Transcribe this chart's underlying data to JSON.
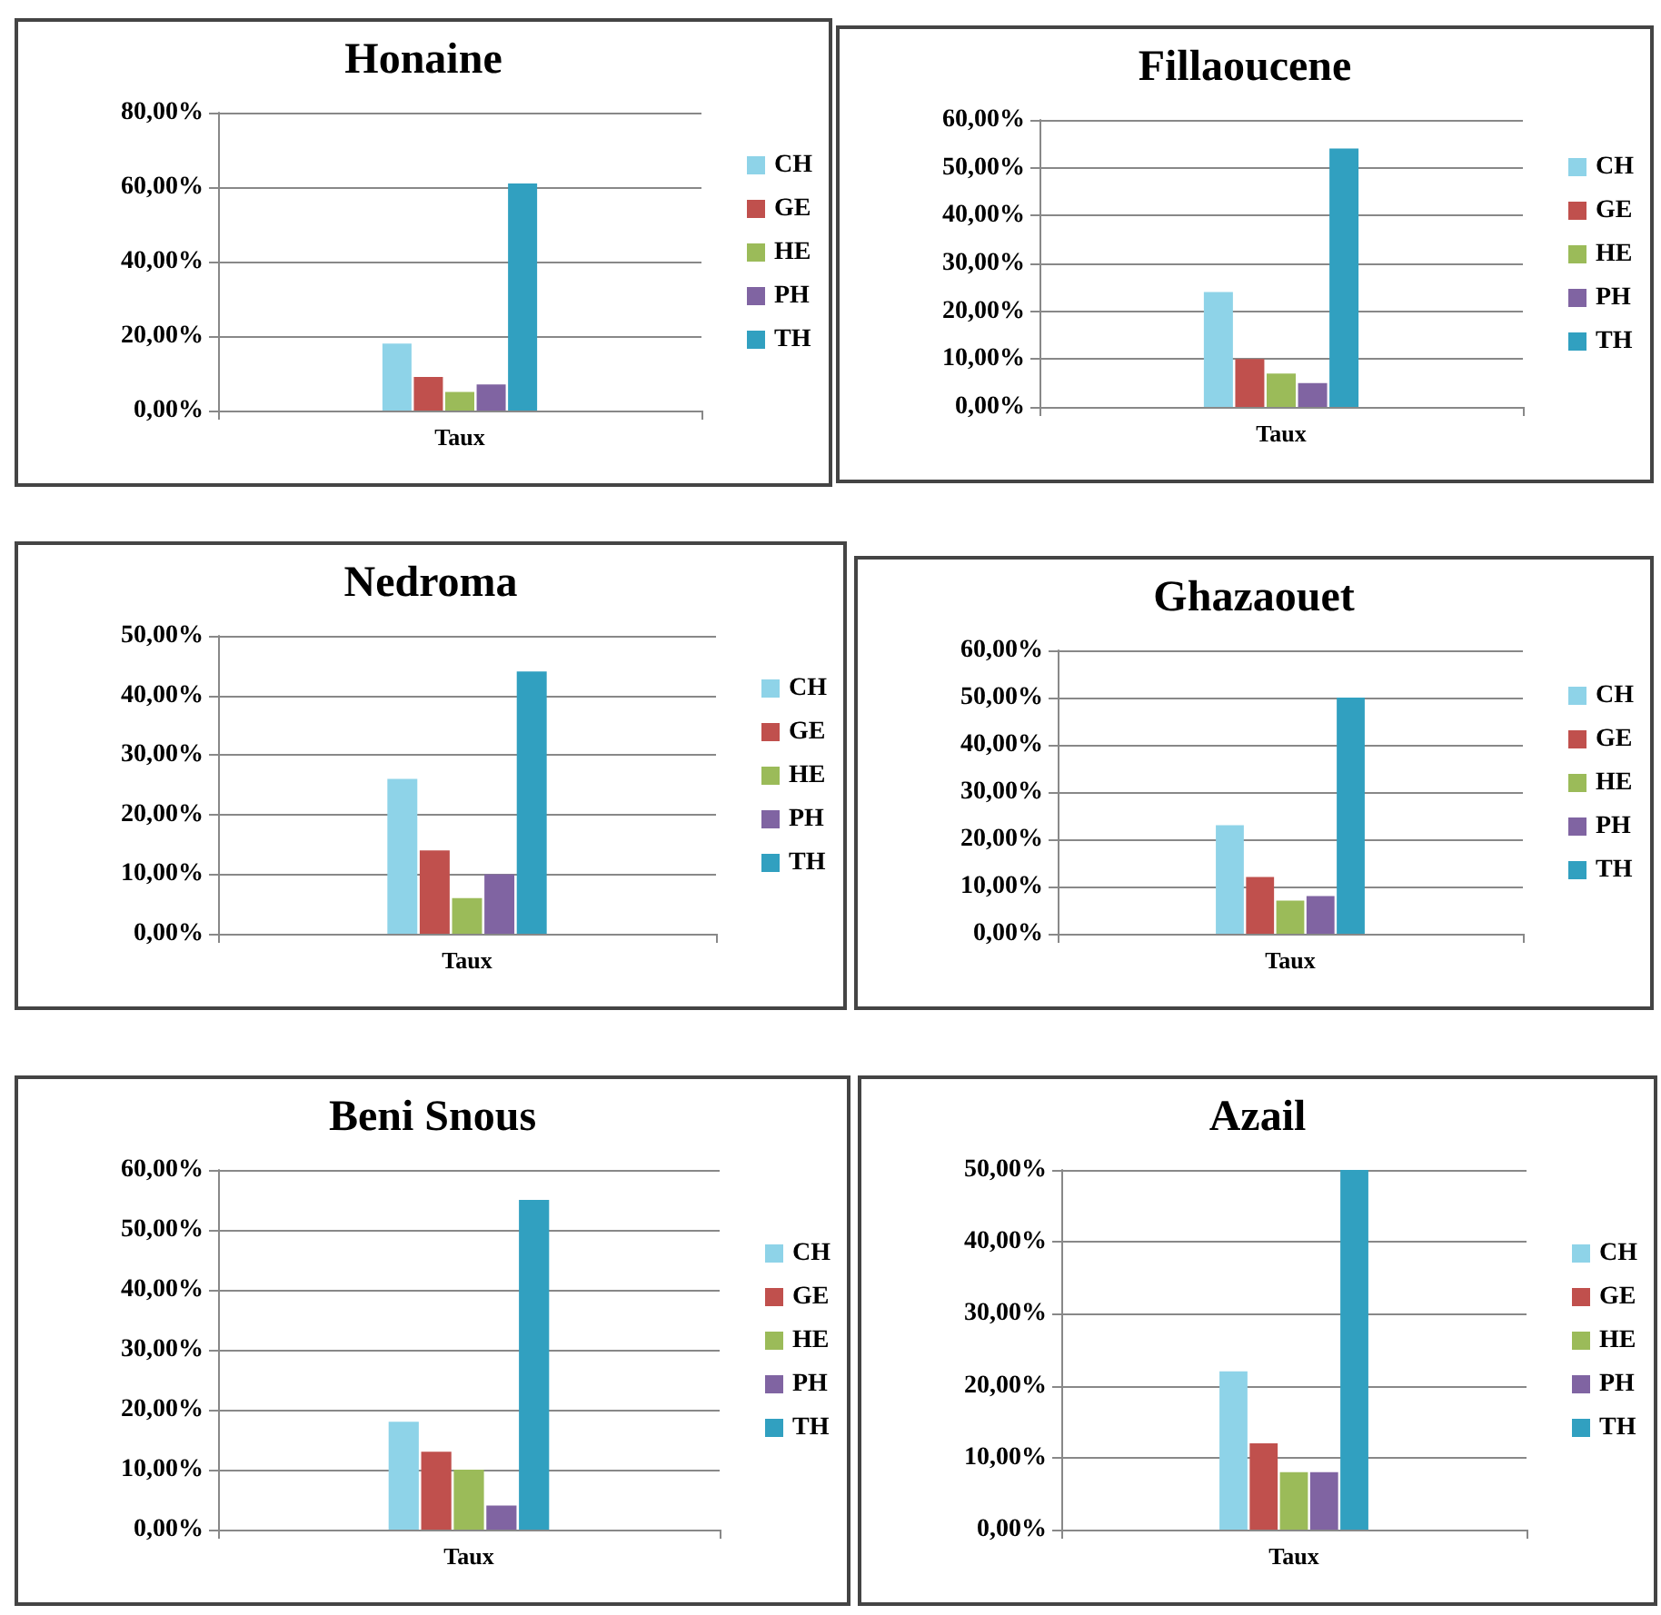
{
  "chart_data": [
    {
      "type": "bar",
      "title": "Honaine",
      "categories": [
        "Taux"
      ],
      "ylim": [
        0,
        80
      ],
      "yticks": [
        {
          "value": 0,
          "label": "0,00%"
        },
        {
          "value": 20,
          "label": "20,00%"
        },
        {
          "value": 40,
          "label": "40,00%"
        },
        {
          "value": 60,
          "label": "60,00%"
        },
        {
          "value": 80,
          "label": "80,00%"
        }
      ],
      "grid": "y",
      "legend": "right",
      "series": [
        {
          "name": "CH",
          "color": "#8ed3e8",
          "values": [
            18
          ]
        },
        {
          "name": "GE",
          "color": "#c0504d",
          "values": [
            9
          ]
        },
        {
          "name": "HE",
          "color": "#9bbb59",
          "values": [
            5
          ]
        },
        {
          "name": "PH",
          "color": "#8064a2",
          "values": [
            7
          ]
        },
        {
          "name": "TH",
          "color": "#31a0c0",
          "values": [
            61
          ]
        }
      ]
    },
    {
      "type": "bar",
      "title": "Fillaoucene",
      "categories": [
        "Taux"
      ],
      "ylim": [
        0,
        60
      ],
      "yticks": [
        {
          "value": 0,
          "label": "0,00%"
        },
        {
          "value": 10,
          "label": "10,00%"
        },
        {
          "value": 20,
          "label": "20,00%"
        },
        {
          "value": 30,
          "label": "30,00%"
        },
        {
          "value": 40,
          "label": "40,00%"
        },
        {
          "value": 50,
          "label": "50,00%"
        },
        {
          "value": 60,
          "label": "60,00%"
        }
      ],
      "grid": "y",
      "legend": "right",
      "series": [
        {
          "name": "CH",
          "color": "#8ed3e8",
          "values": [
            24
          ]
        },
        {
          "name": "GE",
          "color": "#c0504d",
          "values": [
            10
          ]
        },
        {
          "name": "HE",
          "color": "#9bbb59",
          "values": [
            7
          ]
        },
        {
          "name": "PH",
          "color": "#8064a2",
          "values": [
            5
          ]
        },
        {
          "name": "TH",
          "color": "#31a0c0",
          "values": [
            54
          ]
        }
      ]
    },
    {
      "type": "bar",
      "title": "Nedroma",
      "categories": [
        "Taux"
      ],
      "ylim": [
        0,
        50
      ],
      "yticks": [
        {
          "value": 0,
          "label": "0,00%"
        },
        {
          "value": 10,
          "label": "10,00%"
        },
        {
          "value": 20,
          "label": "20,00%"
        },
        {
          "value": 30,
          "label": "30,00%"
        },
        {
          "value": 40,
          "label": "40,00%"
        },
        {
          "value": 50,
          "label": "50,00%"
        }
      ],
      "grid": "y",
      "legend": "right",
      "series": [
        {
          "name": "CH",
          "color": "#8ed3e8",
          "values": [
            26
          ]
        },
        {
          "name": "GE",
          "color": "#c0504d",
          "values": [
            14
          ]
        },
        {
          "name": "HE",
          "color": "#9bbb59",
          "values": [
            6
          ]
        },
        {
          "name": "PH",
          "color": "#8064a2",
          "values": [
            10
          ]
        },
        {
          "name": "TH",
          "color": "#31a0c0",
          "values": [
            44
          ]
        }
      ]
    },
    {
      "type": "bar",
      "title": "Ghazaouet",
      "categories": [
        "Taux"
      ],
      "ylim": [
        0,
        60
      ],
      "yticks": [
        {
          "value": 0,
          "label": "0,00%"
        },
        {
          "value": 10,
          "label": "10,00%"
        },
        {
          "value": 20,
          "label": "20,00%"
        },
        {
          "value": 30,
          "label": "30,00%"
        },
        {
          "value": 40,
          "label": "40,00%"
        },
        {
          "value": 50,
          "label": "50,00%"
        },
        {
          "value": 60,
          "label": "60,00%"
        }
      ],
      "grid": "y",
      "legend": "right",
      "series": [
        {
          "name": "CH",
          "color": "#8ed3e8",
          "values": [
            23
          ]
        },
        {
          "name": "GE",
          "color": "#c0504d",
          "values": [
            12
          ]
        },
        {
          "name": "HE",
          "color": "#9bbb59",
          "values": [
            7
          ]
        },
        {
          "name": "PH",
          "color": "#8064a2",
          "values": [
            8
          ]
        },
        {
          "name": "TH",
          "color": "#31a0c0",
          "values": [
            50
          ]
        }
      ]
    },
    {
      "type": "bar",
      "title": "Beni Snous",
      "categories": [
        "Taux"
      ],
      "ylim": [
        0,
        60
      ],
      "yticks": [
        {
          "value": 0,
          "label": "0,00%"
        },
        {
          "value": 10,
          "label": "10,00%"
        },
        {
          "value": 20,
          "label": "20,00%"
        },
        {
          "value": 30,
          "label": "30,00%"
        },
        {
          "value": 40,
          "label": "40,00%"
        },
        {
          "value": 50,
          "label": "50,00%"
        },
        {
          "value": 60,
          "label": "60,00%"
        }
      ],
      "grid": "y",
      "legend": "right",
      "series": [
        {
          "name": "CH",
          "color": "#8ed3e8",
          "values": [
            18
          ]
        },
        {
          "name": "GE",
          "color": "#c0504d",
          "values": [
            13
          ]
        },
        {
          "name": "HE",
          "color": "#9bbb59",
          "values": [
            10
          ]
        },
        {
          "name": "PH",
          "color": "#8064a2",
          "values": [
            4
          ]
        },
        {
          "name": "TH",
          "color": "#31a0c0",
          "values": [
            55
          ]
        }
      ]
    },
    {
      "type": "bar",
      "title": "Azail",
      "categories": [
        "Taux"
      ],
      "ylim": [
        0,
        50
      ],
      "yticks": [
        {
          "value": 0,
          "label": "0,00%"
        },
        {
          "value": 10,
          "label": "10,00%"
        },
        {
          "value": 20,
          "label": "20,00%"
        },
        {
          "value": 30,
          "label": "30,00%"
        },
        {
          "value": 40,
          "label": "40,00%"
        },
        {
          "value": 50,
          "label": "50,00%"
        }
      ],
      "grid": "y",
      "legend": "right",
      "series": [
        {
          "name": "CH",
          "color": "#8ed3e8",
          "values": [
            22
          ]
        },
        {
          "name": "GE",
          "color": "#c0504d",
          "values": [
            12
          ]
        },
        {
          "name": "HE",
          "color": "#9bbb59",
          "values": [
            8
          ]
        },
        {
          "name": "PH",
          "color": "#8064a2",
          "values": [
            8
          ]
        },
        {
          "name": "TH",
          "color": "#31a0c0",
          "values": [
            50
          ]
        }
      ]
    }
  ]
}
